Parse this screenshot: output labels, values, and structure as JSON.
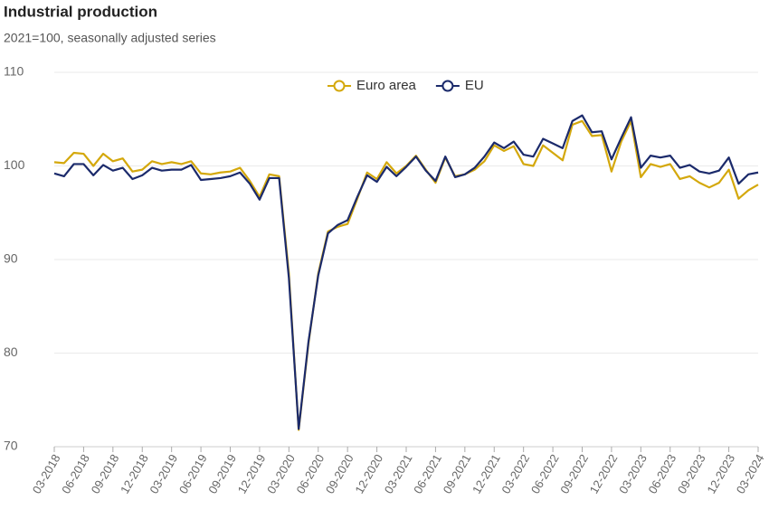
{
  "chart_data": {
    "type": "line",
    "title": "Industrial production",
    "subtitle": "2021=100, seasonally adjusted series",
    "categories": [
      "03-2018",
      null,
      null,
      "06-2018",
      null,
      null,
      "09-2018",
      null,
      null,
      "12-2018",
      null,
      null,
      "03-2019",
      null,
      null,
      "06-2019",
      null,
      null,
      "09-2019",
      null,
      null,
      "12-2019",
      null,
      null,
      "03-2020",
      null,
      null,
      "06-2020",
      null,
      null,
      "09-2020",
      null,
      null,
      "12-2020",
      null,
      null,
      "03-2021",
      null,
      null,
      "06-2021",
      null,
      null,
      "09-2021",
      null,
      null,
      "12-2021",
      null,
      null,
      "03-2022",
      null,
      null,
      "06-2022",
      null,
      null,
      "09-2022",
      null,
      null,
      "12-2022",
      null,
      null,
      "03-2023",
      null,
      null,
      "06-2023",
      null,
      null,
      "09-2023",
      null,
      null,
      "12-2023",
      null,
      null,
      "03-2024"
    ],
    "series": [
      {
        "name": "Euro area",
        "color": "#d4a80c",
        "values": [
          100.4,
          100.3,
          101.4,
          101.3,
          100.0,
          101.3,
          100.5,
          100.8,
          99.4,
          99.6,
          100.5,
          100.2,
          100.4,
          100.2,
          100.5,
          99.2,
          99.1,
          99.3,
          99.4,
          99.8,
          98.4,
          96.7,
          99.1,
          98.9,
          88.5,
          71.8,
          81.0,
          88.5,
          93.0,
          93.5,
          93.8,
          96.5,
          99.3,
          98.6,
          100.4,
          99.2,
          100.0,
          101.1,
          99.6,
          98.2,
          100.9,
          98.9,
          99.1,
          99.6,
          100.5,
          102.2,
          101.6,
          102.1,
          100.2,
          100.0,
          102.2,
          101.4,
          100.6,
          104.4,
          104.8,
          103.2,
          103.3,
          99.4,
          102.6,
          104.8,
          98.8,
          100.2,
          99.9,
          100.2,
          98.6,
          98.9,
          98.2,
          97.7,
          98.2,
          99.6,
          96.5,
          97.4,
          98.0
        ]
      },
      {
        "name": "EU",
        "color": "#1b2a6b",
        "values": [
          99.2,
          98.9,
          100.2,
          100.2,
          99.0,
          100.1,
          99.5,
          99.8,
          98.6,
          99.0,
          99.8,
          99.5,
          99.6,
          99.6,
          100.1,
          98.5,
          98.6,
          98.7,
          98.9,
          99.3,
          98.1,
          96.4,
          98.7,
          98.7,
          88.0,
          71.9,
          81.2,
          88.3,
          92.8,
          93.7,
          94.2,
          96.7,
          99.0,
          98.3,
          99.9,
          98.9,
          99.9,
          101.0,
          99.5,
          98.4,
          101.0,
          98.8,
          99.1,
          99.8,
          101.0,
          102.5,
          101.9,
          102.6,
          101.2,
          101.0,
          102.9,
          102.4,
          101.9,
          104.8,
          105.4,
          103.6,
          103.7,
          100.7,
          103.0,
          105.2,
          99.8,
          101.1,
          100.9,
          101.1,
          99.8,
          100.1,
          99.4,
          99.2,
          99.5,
          100.9,
          98.1,
          99.1,
          99.3
        ]
      }
    ],
    "ylim": [
      70,
      110
    ],
    "yticks": [
      70,
      80,
      90,
      100,
      110
    ],
    "grid": true,
    "legend": "top"
  }
}
